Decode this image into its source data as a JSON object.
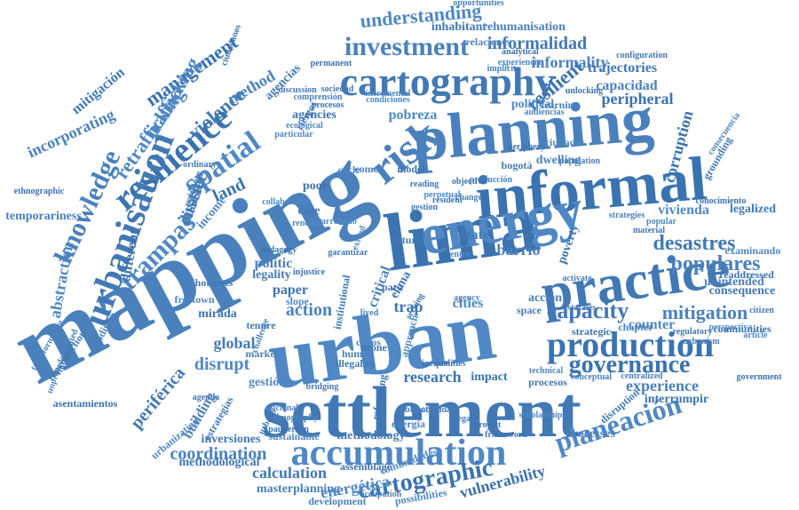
{
  "words": [
    "mapping",
    "lima",
    "urban",
    "settlement",
    "planning",
    "informal",
    "energy",
    "practice",
    "risk",
    "production",
    "accumulation",
    "cartography",
    "investment",
    "resilience",
    "spatial",
    "urbanisation",
    "knowledge",
    "governance",
    "planeación",
    "capacity",
    "mitigation",
    "cartographic",
    "trampas",
    "desastres",
    "populares",
    "management",
    "understanding",
    "informalidad",
    "informality",
    "resilient",
    "trafficking",
    "violence",
    "coordination",
    "research",
    "retrafficking",
    "mitigación",
    "incorporating",
    "peripheral",
    "pobreza",
    "trajectories",
    "capacidad",
    "corruption",
    "vivienda",
    "legalized",
    "experience",
    "interrumpir",
    "disrupt",
    "global",
    "action",
    "trap",
    "cities",
    "state",
    "barrio",
    "land",
    "justice",
    "disaster",
    "method",
    "methodological",
    "sustainable",
    "calculation",
    "masterplanning",
    "vulnerability",
    "energética",
    "periférica",
    "building",
    "different",
    "abstraction",
    "reproduction",
    "temporariness",
    "asentamientos",
    "urbanization",
    "inversiones",
    "processes",
    "impact",
    "gestión",
    "estrategias",
    "development",
    "agencies",
    "political",
    "bogotá",
    "dwelling",
    "poor",
    "cycle",
    "tenure",
    "acción",
    "poverty",
    "counter",
    "consequence",
    "unintended",
    "readdressed",
    "examinando",
    "grounding",
    "human",
    "drone",
    "ciclos",
    "illegality",
    "market",
    "paper",
    "slope",
    "legality",
    "politic",
    "mirada",
    "freetown",
    "hotspots",
    "condition",
    "ethnographic",
    "unprecedented",
    "interrelated",
    "transformative",
    "reframing",
    "approach",
    "institutional",
    "collective",
    "framework",
    "scholarship",
    "disruption",
    "centralized",
    "government",
    "technical",
    "procesos",
    "conceptual",
    "permanent",
    "experiencia",
    "configuration",
    "opportunities",
    "ciudadanos",
    "ecological",
    "inhabitant",
    "rehumanisation",
    "model",
    "entre",
    "case",
    "como",
    "para",
    "income",
    "riesgos",
    "critical",
    "elima",
    "agency",
    "space",
    "chapter",
    "strategic",
    "popular",
    "material",
    "strategies",
    "communities",
    "perspectiva",
    "regulatory",
    "consecuencia",
    "conocimiento",
    "relaciones",
    "agencias",
    "learning",
    "unlocking",
    "particular",
    "ordinary",
    "resistance",
    "pedagogy",
    "renewal",
    "illegal",
    "occupation",
    "assemblage",
    "comunidades",
    "estatales",
    "activate",
    "seeking",
    "extend",
    "future",
    "lived",
    "project",
    "possibilities",
    "methodology",
    "energía",
    "injustice",
    "incremental",
    "bridging",
    "challenge",
    "pauperism",
    "collaborative",
    "agenda",
    "ethnography",
    "urbano",
    "nacional",
    "actividad",
    "implicit",
    "analytical",
    "audiencias",
    "sociedad",
    "comprensión",
    "procesos",
    "condiciones",
    "discussion",
    "population",
    "periphery",
    "ciudades",
    "gestion",
    "producción",
    "resident",
    "perpetual",
    "reading",
    "change",
    "objective",
    "article",
    "citizen",
    "urbanism",
    "inequalities",
    "desarrollado",
    "garantizar",
    "afectados",
    "problems",
    "manera"
  ]
}
